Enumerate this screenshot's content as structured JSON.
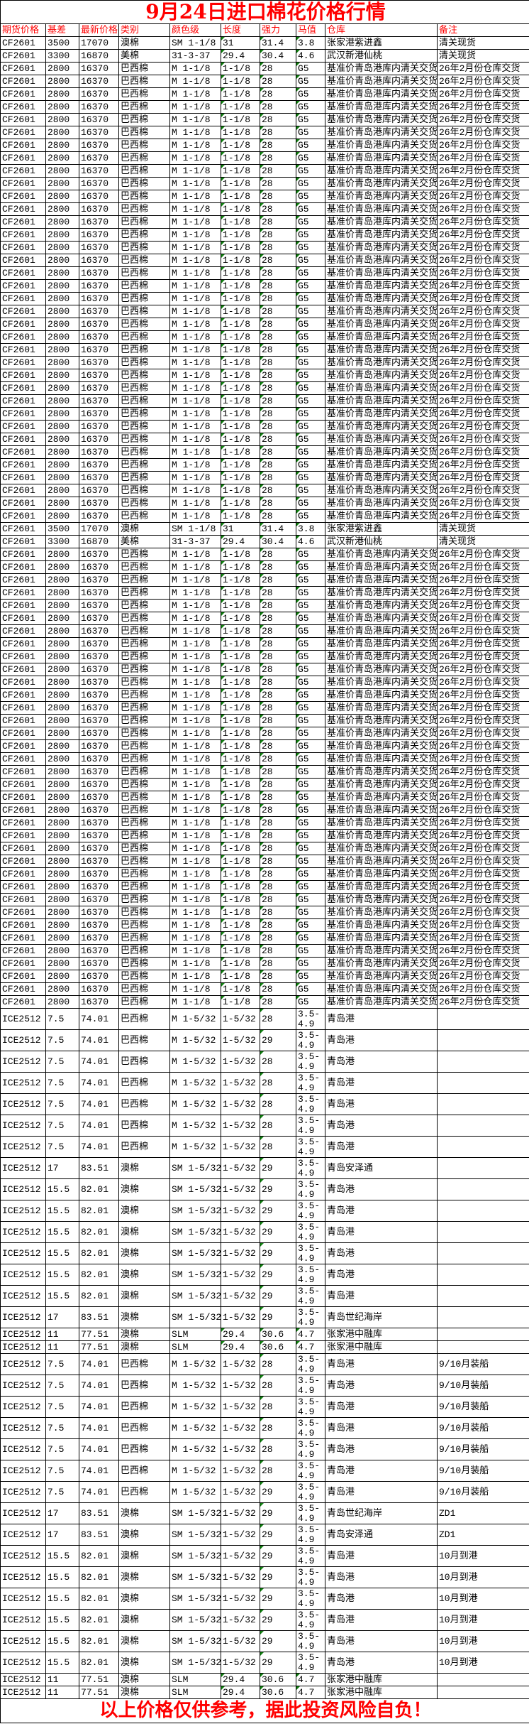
{
  "title": "9月24日进口棉花价格行情",
  "footer": "以上价格仅供参考，据此投资风险自负！",
  "colors": {
    "title": "#ff0000",
    "header_text": "#ff0000",
    "marker": "#108010"
  },
  "headers": [
    "期货价格",
    "基差",
    "最新价格",
    "类别",
    "颜色级",
    "长度",
    "强力",
    "马值",
    "仓库",
    "备注"
  ],
  "cf_rows": [
    [
      "CF2601",
      "3500",
      "17070",
      "澳棉",
      "SM 1-1/8",
      "31",
      "31.4",
      "3.8",
      "张家港紫进鑫",
      "清关现货"
    ],
    [
      "CF2601",
      "3300",
      "16870",
      "美棉",
      "31-3-37",
      "29.4",
      "30.4",
      "4.6",
      "武汉新港仙桃",
      "清关现货"
    ],
    [
      "CF2601",
      "2800",
      "16370",
      "巴西棉",
      "M 1-1/8",
      "1-1/8",
      "28",
      "G5",
      "基准价青岛港库内清关交货；",
      "26年2月份仓库交货"
    ],
    [
      "CF2601",
      "2800",
      "16370",
      "巴西棉",
      "M 1-1/8",
      "1-1/8",
      "28",
      "G5",
      "基准价青岛港库内清关交货；",
      "26年2月份仓库交货"
    ],
    [
      "CF2601",
      "2800",
      "16370",
      "巴西棉",
      "M 1-1/8",
      "1-1/8",
      "28",
      "G5",
      "基准价青岛港库内清关交货；",
      "26年2月份仓库交货"
    ],
    [
      "CF2601",
      "2800",
      "16370",
      "巴西棉",
      "M 1-1/8",
      "1-1/8",
      "28",
      "G5",
      "基准价青岛港库内清关交货；",
      "26年2月份仓库交货"
    ],
    [
      "CF2601",
      "2800",
      "16370",
      "巴西棉",
      "M 1-1/8",
      "1-1/8",
      "28",
      "G5",
      "基准价青岛港库内清关交货；",
      "26年2月份仓库交货"
    ],
    [
      "CF2601",
      "2800",
      "16370",
      "巴西棉",
      "M 1-1/8",
      "1-1/8",
      "28",
      "G5",
      "基准价青岛港库内清关交货；",
      "26年2月份仓库交货"
    ],
    [
      "CF2601",
      "2800",
      "16370",
      "巴西棉",
      "M 1-1/8",
      "1-1/8",
      "28",
      "G5",
      "基准价青岛港库内清关交货；",
      "26年2月份仓库交货"
    ],
    [
      "CF2601",
      "2800",
      "16370",
      "巴西棉",
      "M 1-1/8",
      "1-1/8",
      "28",
      "G5",
      "基准价青岛港库内清关交货；",
      "26年2月份仓库交货"
    ],
    [
      "CF2601",
      "2800",
      "16370",
      "巴西棉",
      "M 1-1/8",
      "1-1/8",
      "28",
      "G5",
      "基准价青岛港库内清关交货；",
      "26年2月份仓库交货"
    ],
    [
      "CF2601",
      "2800",
      "16370",
      "巴西棉",
      "M 1-1/8",
      "1-1/8",
      "28",
      "G5",
      "基准价青岛港库内清关交货；",
      "26年2月份仓库交货"
    ],
    [
      "CF2601",
      "2800",
      "16370",
      "巴西棉",
      "M 1-1/8",
      "1-1/8",
      "28",
      "G5",
      "基准价青岛港库内清关交货；",
      "26年2月份仓库交货"
    ],
    [
      "CF2601",
      "2800",
      "16370",
      "巴西棉",
      "M 1-1/8",
      "1-1/8",
      "28",
      "G5",
      "基准价青岛港库内清关交货；",
      "26年2月份仓库交货"
    ],
    [
      "CF2601",
      "2800",
      "16370",
      "巴西棉",
      "M 1-1/8",
      "1-1/8",
      "28",
      "G5",
      "基准价青岛港库内清关交货；",
      "26年2月份仓库交货"
    ],
    [
      "CF2601",
      "2800",
      "16370",
      "巴西棉",
      "M 1-1/8",
      "1-1/8",
      "28",
      "G5",
      "基准价青岛港库内清关交货；",
      "26年2月份仓库交货"
    ],
    [
      "CF2601",
      "2800",
      "16370",
      "巴西棉",
      "M 1-1/8",
      "1-1/8",
      "28",
      "G5",
      "基准价青岛港库内清关交货；",
      "26年2月份仓库交货"
    ],
    [
      "CF2601",
      "2800",
      "16370",
      "巴西棉",
      "M 1-1/8",
      "1-1/8",
      "28",
      "G5",
      "基准价青岛港库内清关交货；",
      "26年2月份仓库交货"
    ],
    [
      "CF2601",
      "2800",
      "16370",
      "巴西棉",
      "M 1-1/8",
      "1-1/8",
      "28",
      "G5",
      "基准价青岛港库内清关交货；",
      "26年2月份仓库交货"
    ],
    [
      "CF2601",
      "2800",
      "16370",
      "巴西棉",
      "M 1-1/8",
      "1-1/8",
      "28",
      "G5",
      "基准价青岛港库内清关交货；",
      "26年2月份仓库交货"
    ],
    [
      "CF2601",
      "2800",
      "16370",
      "巴西棉",
      "M 1-1/8",
      "1-1/8",
      "28",
      "G5",
      "基准价青岛港库内清关交货；",
      "26年2月份仓库交货"
    ],
    [
      "CF2601",
      "2800",
      "16370",
      "巴西棉",
      "M 1-1/8",
      "1-1/8",
      "28",
      "G5",
      "基准价青岛港库内清关交货；",
      "26年2月份仓库交货"
    ],
    [
      "CF2601",
      "2800",
      "16370",
      "巴西棉",
      "M 1-1/8",
      "1-1/8",
      "28",
      "G5",
      "基准价青岛港库内清关交货；",
      "26年2月份仓库交货"
    ],
    [
      "CF2601",
      "2800",
      "16370",
      "巴西棉",
      "M 1-1/8",
      "1-1/8",
      "28",
      "G5",
      "基准价青岛港库内清关交货；",
      "26年2月份仓库交货"
    ],
    [
      "CF2601",
      "2800",
      "16370",
      "巴西棉",
      "M 1-1/8",
      "1-1/8",
      "28",
      "G5",
      "基准价青岛港库内清关交货；",
      "26年2月份仓库交货"
    ],
    [
      "CF2601",
      "2800",
      "16370",
      "巴西棉",
      "M 1-1/8",
      "1-1/8",
      "28",
      "G5",
      "基准价青岛港库内清关交货；",
      "26年2月份仓库交货"
    ],
    [
      "CF2601",
      "2800",
      "16370",
      "巴西棉",
      "M 1-1/8",
      "1-1/8",
      "28",
      "G5",
      "基准价青岛港库内清关交货；",
      "26年2月份仓库交货"
    ],
    [
      "CF2601",
      "2800",
      "16370",
      "巴西棉",
      "M 1-1/8",
      "1-1/8",
      "28",
      "G5",
      "基准价青岛港库内清关交货；",
      "26年2月份仓库交货"
    ],
    [
      "CF2601",
      "2800",
      "16370",
      "巴西棉",
      "M 1-1/8",
      "1-1/8",
      "28",
      "G5",
      "基准价青岛港库内清关交货；",
      "26年2月份仓库交货"
    ],
    [
      "CF2601",
      "2800",
      "16370",
      "巴西棉",
      "M 1-1/8",
      "1-1/8",
      "28",
      "G5",
      "基准价青岛港库内清关交货；",
      "26年2月份仓库交货"
    ],
    [
      "CF2601",
      "2800",
      "16370",
      "巴西棉",
      "M 1-1/8",
      "1-1/8",
      "28",
      "G5",
      "基准价青岛港库内清关交货；",
      "26年2月份仓库交货"
    ],
    [
      "CF2601",
      "2800",
      "16370",
      "巴西棉",
      "M 1-1/8",
      "1-1/8",
      "28",
      "G5",
      "基准价青岛港库内清关交货；",
      "26年2月份仓库交货"
    ],
    [
      "CF2601",
      "2800",
      "16370",
      "巴西棉",
      "M 1-1/8",
      "1-1/8",
      "28",
      "G5",
      "基准价青岛港库内清关交货；",
      "26年2月份仓库交货"
    ],
    [
      "CF2601",
      "2800",
      "16370",
      "巴西棉",
      "M 1-1/8",
      "1-1/8",
      "28",
      "G5",
      "基准价青岛港库内清关交货；",
      "26年2月份仓库交货"
    ],
    [
      "CF2601",
      "2800",
      "16370",
      "巴西棉",
      "M 1-1/8",
      "1-1/8",
      "28",
      "G5",
      "基准价青岛港库内清关交货；",
      "26年2月份仓库交货"
    ],
    [
      "CF2601",
      "2800",
      "16370",
      "巴西棉",
      "M 1-1/8",
      "1-1/8",
      "28",
      "G5",
      "基准价青岛港库内清关交货；",
      "26年2月份仓库交货"
    ],
    [
      "CF2601",
      "2800",
      "16370",
      "巴西棉",
      "M 1-1/8",
      "1-1/8",
      "28",
      "G5",
      "基准价青岛港库内清关交货；",
      "26年2月份仓库交货"
    ],
    [
      "CF2601",
      "2800",
      "16370",
      "巴西棉",
      "M 1-1/8",
      "1-1/8",
      "28",
      "G5",
      "基准价青岛港库内清关交货；",
      "26年2月份仓库交货"
    ],
    [
      "CF2601",
      "3500",
      "17070",
      "澳棉",
      "SM 1-1/8",
      "31",
      "31.4",
      "3.8",
      "张家港紫进鑫",
      "清关现货"
    ],
    [
      "CF2601",
      "3300",
      "16870",
      "美棉",
      "31-3-37",
      "29.4",
      "30.4",
      "4.6",
      "武汉新港仙桃",
      "清关现货"
    ],
    [
      "CF2601",
      "2800",
      "16370",
      "巴西棉",
      "M 1-1/8",
      "1-1/8",
      "28",
      "G5",
      "基准价青岛港库内清关交货；",
      "26年2月份仓库交货"
    ],
    [
      "CF2601",
      "2800",
      "16370",
      "巴西棉",
      "M 1-1/8",
      "1-1/8",
      "28",
      "G5",
      "基准价青岛港库内清关交货；",
      "26年2月份仓库交货"
    ],
    [
      "CF2601",
      "2800",
      "16370",
      "巴西棉",
      "M 1-1/8",
      "1-1/8",
      "28",
      "G5",
      "基准价青岛港库内清关交货；",
      "26年2月份仓库交货"
    ],
    [
      "CF2601",
      "2800",
      "16370",
      "巴西棉",
      "M 1-1/8",
      "1-1/8",
      "28",
      "G5",
      "基准价青岛港库内清关交货；",
      "26年2月份仓库交货"
    ],
    [
      "CF2601",
      "2800",
      "16370",
      "巴西棉",
      "M 1-1/8",
      "1-1/8",
      "28",
      "G5",
      "基准价青岛港库内清关交货；",
      "26年2月份仓库交货"
    ],
    [
      "CF2601",
      "2800",
      "16370",
      "巴西棉",
      "M 1-1/8",
      "1-1/8",
      "28",
      "G5",
      "基准价青岛港库内清关交货；",
      "26年2月份仓库交货"
    ],
    [
      "CF2601",
      "2800",
      "16370",
      "巴西棉",
      "M 1-1/8",
      "1-1/8",
      "28",
      "G5",
      "基准价青岛港库内清关交货；",
      "26年2月份仓库交货"
    ],
    [
      "CF2601",
      "2800",
      "16370",
      "巴西棉",
      "M 1-1/8",
      "1-1/8",
      "28",
      "G5",
      "基准价青岛港库内清关交货；",
      "26年2月份仓库交货"
    ],
    [
      "CF2601",
      "2800",
      "16370",
      "巴西棉",
      "M 1-1/8",
      "1-1/8",
      "28",
      "G5",
      "基准价青岛港库内清关交货；",
      "26年2月份仓库交货"
    ],
    [
      "CF2601",
      "2800",
      "16370",
      "巴西棉",
      "M 1-1/8",
      "1-1/8",
      "28",
      "G5",
      "基准价青岛港库内清关交货；",
      "26年2月份仓库交货"
    ],
    [
      "CF2601",
      "2800",
      "16370",
      "巴西棉",
      "M 1-1/8",
      "1-1/8",
      "28",
      "G5",
      "基准价青岛港库内清关交货；",
      "26年2月份仓库交货"
    ],
    [
      "CF2601",
      "2800",
      "16370",
      "巴西棉",
      "M 1-1/8",
      "1-1/8",
      "28",
      "G5",
      "基准价青岛港库内清关交货；",
      "26年2月份仓库交货"
    ],
    [
      "CF2601",
      "2800",
      "16370",
      "巴西棉",
      "M 1-1/8",
      "1-1/8",
      "28",
      "G5",
      "基准价青岛港库内清关交货；",
      "26年2月份仓库交货"
    ],
    [
      "CF2601",
      "2800",
      "16370",
      "巴西棉",
      "M 1-1/8",
      "1-1/8",
      "28",
      "G5",
      "基准价青岛港库内清关交货；",
      "26年2月份仓库交货"
    ],
    [
      "CF2601",
      "2800",
      "16370",
      "巴西棉",
      "M 1-1/8",
      "1-1/8",
      "28",
      "G5",
      "基准价青岛港库内清关交货；",
      "26年2月份仓库交货"
    ],
    [
      "CF2601",
      "2800",
      "16370",
      "巴西棉",
      "M 1-1/8",
      "1-1/8",
      "28",
      "G5",
      "基准价青岛港库内清关交货；",
      "26年2月份仓库交货"
    ],
    [
      "CF2601",
      "2800",
      "16370",
      "巴西棉",
      "M 1-1/8",
      "1-1/8",
      "28",
      "G5",
      "基准价青岛港库内清关交货；",
      "26年2月份仓库交货"
    ],
    [
      "CF2601",
      "2800",
      "16370",
      "巴西棉",
      "M 1-1/8",
      "1-1/8",
      "28",
      "G5",
      "基准价青岛港库内清关交货；",
      "26年2月份仓库交货"
    ],
    [
      "CF2601",
      "2800",
      "16370",
      "巴西棉",
      "M 1-1/8",
      "1-1/8",
      "28",
      "G5",
      "基准价青岛港库内清关交货；",
      "26年2月份仓库交货"
    ],
    [
      "CF2601",
      "2800",
      "16370",
      "巴西棉",
      "M 1-1/8",
      "1-1/8",
      "28",
      "G5",
      "基准价青岛港库内清关交货；",
      "26年2月份仓库交货"
    ],
    [
      "CF2601",
      "2800",
      "16370",
      "巴西棉",
      "M 1-1/8",
      "1-1/8",
      "28",
      "G5",
      "基准价青岛港库内清关交货；",
      "26年2月份仓库交货"
    ],
    [
      "CF2601",
      "2800",
      "16370",
      "巴西棉",
      "M 1-1/8",
      "1-1/8",
      "28",
      "G5",
      "基准价青岛港库内清关交货；",
      "26年2月份仓库交货"
    ],
    [
      "CF2601",
      "2800",
      "16370",
      "巴西棉",
      "M 1-1/8",
      "1-1/8",
      "28",
      "G5",
      "基准价青岛港库内清关交货；",
      "26年2月份仓库交货"
    ],
    [
      "CF2601",
      "2800",
      "16370",
      "巴西棉",
      "M 1-1/8",
      "1-1/8",
      "28",
      "G5",
      "基准价青岛港库内清关交货；",
      "26年2月份仓库交货"
    ],
    [
      "CF2601",
      "2800",
      "16370",
      "巴西棉",
      "M 1-1/8",
      "1-1/8",
      "28",
      "G5",
      "基准价青岛港库内清关交货；",
      "26年2月份仓库交货"
    ],
    [
      "CF2601",
      "2800",
      "16370",
      "巴西棉",
      "M 1-1/8",
      "1-1/8",
      "28",
      "G5",
      "基准价青岛港库内清关交货；",
      "26年2月份仓库交货"
    ],
    [
      "CF2601",
      "2800",
      "16370",
      "巴西棉",
      "M 1-1/8",
      "1-1/8",
      "28",
      "G5",
      "基准价青岛港库内清关交货；",
      "26年2月份仓库交货"
    ],
    [
      "CF2601",
      "2800",
      "16370",
      "巴西棉",
      "M 1-1/8",
      "1-1/8",
      "28",
      "G5",
      "基准价青岛港库内清关交货；",
      "26年2月份仓库交货"
    ],
    [
      "CF2601",
      "2800",
      "16370",
      "巴西棉",
      "M 1-1/8",
      "1-1/8",
      "28",
      "G5",
      "基准价青岛港库内清关交货；",
      "26年2月份仓库交货"
    ],
    [
      "CF2601",
      "2800",
      "16370",
      "巴西棉",
      "M 1-1/8",
      "1-1/8",
      "28",
      "G5",
      "基准价青岛港库内清关交货；",
      "26年2月份仓库交货"
    ],
    [
      "CF2601",
      "2800",
      "16370",
      "巴西棉",
      "M 1-1/8",
      "1-1/8",
      "28",
      "G5",
      "基准价青岛港库内清关交货；",
      "26年2月份仓库交货"
    ],
    [
      "CF2601",
      "2800",
      "16370",
      "巴西棉",
      "M 1-1/8",
      "1-1/8",
      "28",
      "G5",
      "基准价青岛港库内清关交货；",
      "26年2月份仓库交货"
    ],
    [
      "CF2601",
      "2800",
      "16370",
      "巴西棉",
      "M 1-1/8",
      "1-1/8",
      "28",
      "G5",
      "基准价青岛港库内清关交货；",
      "26年2月份仓库交货"
    ],
    [
      "CF2601",
      "2800",
      "16370",
      "巴西棉",
      "M 1-1/8",
      "1-1/8",
      "28",
      "G5",
      "基准价青岛港库内清关交货；",
      "26年2月份仓库交货"
    ],
    [
      "CF2601",
      "2800",
      "16370",
      "巴西棉",
      "M 1-1/8",
      "1-1/8",
      "28",
      "G5",
      "基准价青岛港库内清关交货；",
      "26年2月份仓库交货"
    ],
    [
      "CF2601",
      "2800",
      "16370",
      "巴西棉",
      "M 1-1/8",
      "1-1/8",
      "28",
      "G5",
      "基准价青岛港库内清关交货；",
      "26年2月份仓库交货"
    ]
  ],
  "ice_rows": [
    [
      "ICE2512",
      "7.5",
      "74.01",
      "巴西棉",
      "M 1-5/32",
      "1-5/32",
      "28",
      "3.5-4.9",
      "青岛港",
      ""
    ],
    [
      "ICE2512",
      "7.5",
      "74.01",
      "巴西棉",
      "M 1-5/32",
      "1-5/32",
      "29",
      "3.5-4.9",
      "青岛港",
      ""
    ],
    [
      "ICE2512",
      "7.5",
      "74.01",
      "巴西棉",
      "M 1-5/32",
      "1-5/32",
      "28",
      "3.5-4.9",
      "青岛港",
      ""
    ],
    [
      "ICE2512",
      "7.5",
      "74.01",
      "巴西棉",
      "M 1-5/32",
      "1-5/32",
      "28",
      "3.5-4.9",
      "青岛港",
      ""
    ],
    [
      "ICE2512",
      "7.5",
      "74.01",
      "巴西棉",
      "M 1-5/32",
      "1-5/32",
      "28",
      "3.5-4.9",
      "青岛港",
      ""
    ],
    [
      "ICE2512",
      "7.5",
      "74.01",
      "巴西棉",
      "M 1-5/32",
      "1-5/32",
      "28",
      "3.5-4.9",
      "青岛港",
      ""
    ],
    [
      "ICE2512",
      "7.5",
      "74.01",
      "巴西棉",
      "M 1-5/32",
      "1-5/32",
      "28",
      "3.5-4.9",
      "青岛港",
      ""
    ],
    [
      "ICE2512",
      "17",
      "83.51",
      "澳棉",
      "SM 1-5/32",
      "1-5/32",
      "29",
      "3.5-4.9",
      "青岛安泽通",
      ""
    ],
    [
      "ICE2512",
      "15.5",
      "82.01",
      "澳棉",
      "SM 1-5/32",
      "1-5/32",
      "29",
      "3.5-4.9",
      "青岛港",
      ""
    ],
    [
      "ICE2512",
      "15.5",
      "82.01",
      "澳棉",
      "SM 1-5/32",
      "1-5/32",
      "29",
      "3.5-4.9",
      "青岛港",
      ""
    ],
    [
      "ICE2512",
      "15.5",
      "82.01",
      "澳棉",
      "SM 1-5/32",
      "1-5/32",
      "29",
      "3.5-4.9",
      "青岛港",
      ""
    ],
    [
      "ICE2512",
      "15.5",
      "82.01",
      "澳棉",
      "SM 1-5/32",
      "1-5/32",
      "29",
      "3.5-4.9",
      "青岛港",
      ""
    ],
    [
      "ICE2512",
      "15.5",
      "82.01",
      "澳棉",
      "SM 1-5/32",
      "1-5/32",
      "29",
      "3.5-4.9",
      "青岛港",
      ""
    ],
    [
      "ICE2512",
      "15.5",
      "82.01",
      "澳棉",
      "SM 1-5/32",
      "1-5/32",
      "29",
      "3.5-4.9",
      "青岛港",
      ""
    ],
    [
      "ICE2512",
      "17",
      "83.51",
      "澳棉",
      "SM 1-5/32",
      "1-5/32",
      "29",
      "3.5-4.9",
      "青岛世纪海岸",
      ""
    ],
    [
      "ICE2512",
      "11",
      "77.51",
      "澳棉",
      "SLM",
      "29.4",
      "30.6",
      "4.7",
      "张家港中融库",
      ""
    ],
    [
      "ICE2512",
      "11",
      "77.51",
      "澳棉",
      "SLM",
      "29.4",
      "30.6",
      "4.7",
      "张家港中融库",
      ""
    ],
    [
      "ICE2512",
      "7.5",
      "74.01",
      "巴西棉",
      "M 1-5/32",
      "1-5/32",
      "28",
      "3.5-4.9",
      "青岛港",
      "9/10月装船"
    ],
    [
      "ICE2512",
      "7.5",
      "74.01",
      "巴西棉",
      "M 1-5/32",
      "1-5/32",
      "28",
      "3.5-4.9",
      "青岛港",
      "9/10月装船"
    ],
    [
      "ICE2512",
      "7.5",
      "74.01",
      "巴西棉",
      "M 1-5/32",
      "1-5/32",
      "28",
      "3.5-4.9",
      "青岛港",
      "9/10月装船"
    ],
    [
      "ICE2512",
      "7.5",
      "74.01",
      "巴西棉",
      "M 1-5/32",
      "1-5/32",
      "28",
      "3.5-4.9",
      "青岛港",
      "9/10月装船"
    ],
    [
      "ICE2512",
      "7.5",
      "74.01",
      "巴西棉",
      "M 1-5/32",
      "1-5/32",
      "28",
      "3.5-4.9",
      "青岛港",
      "9/10月装船"
    ],
    [
      "ICE2512",
      "7.5",
      "74.01",
      "巴西棉",
      "M 1-5/32",
      "1-5/32",
      "28",
      "3.5-4.9",
      "青岛港",
      "9/10月装船"
    ],
    [
      "ICE2512",
      "7.5",
      "74.01",
      "巴西棉",
      "M 1-5/32",
      "1-5/32",
      "29",
      "3.5-4.9",
      "青岛港",
      "9/10月装船"
    ],
    [
      "ICE2512",
      "17",
      "83.51",
      "澳棉",
      "SM 1-5/32",
      "1-5/32",
      "29",
      "3.5-4.9",
      "青岛世纪海岸",
      "ZD1"
    ],
    [
      "ICE2512",
      "17",
      "83.51",
      "澳棉",
      "SM 1-5/32",
      "1-5/32",
      "29",
      "3.5-4.9",
      "青岛安泽通",
      "ZD1"
    ],
    [
      "ICE2512",
      "15.5",
      "82.01",
      "澳棉",
      "SM 1-5/32",
      "1-5/32",
      "29",
      "3.5-4.9",
      "青岛港",
      "10月到港"
    ],
    [
      "ICE2512",
      "15.5",
      "82.01",
      "澳棉",
      "SM 1-5/32",
      "1-5/32",
      "29",
      "3.5-4.9",
      "青岛港",
      "10月到港"
    ],
    [
      "ICE2512",
      "15.5",
      "82.01",
      "澳棉",
      "SM 1-5/32",
      "1-5/32",
      "29",
      "3.5-4.9",
      "青岛港",
      "10月到港"
    ],
    [
      "ICE2512",
      "15.5",
      "82.01",
      "澳棉",
      "SM 1-5/32",
      "1-5/32",
      "29",
      "3.5-4.9",
      "青岛港",
      "10月到港"
    ],
    [
      "ICE2512",
      "15.5",
      "82.01",
      "澳棉",
      "SM 1-5/32",
      "1-5/32",
      "29",
      "3.5-4.9",
      "青岛港",
      "10月到港"
    ],
    [
      "ICE2512",
      "15.5",
      "82.01",
      "澳棉",
      "SM 1-5/32",
      "1-5/32",
      "29",
      "3.5-4.9",
      "青岛港",
      "10月到港"
    ],
    [
      "ICE2512",
      "11",
      "77.51",
      "澳棉",
      "SLM",
      "29.4",
      "30.6",
      "4.7",
      "张家港中融库",
      ""
    ],
    [
      "ICE2512",
      "11",
      "77.51",
      "澳棉",
      "SLM",
      "29.4",
      "30.6",
      "4.7",
      "张家港中融库",
      ""
    ]
  ]
}
